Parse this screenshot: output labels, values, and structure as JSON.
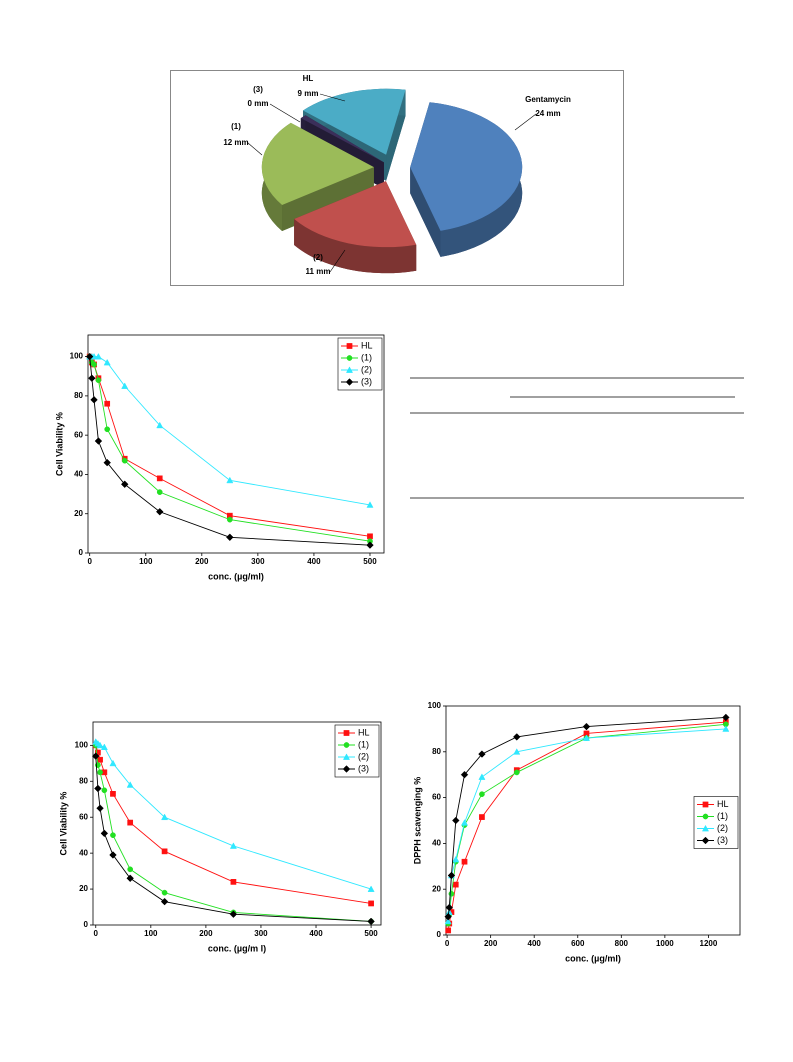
{
  "chart_data": [
    {
      "type": "pie",
      "labels": [
        "Gentamycin",
        "(2)",
        "(1)",
        "(3)",
        "HL"
      ],
      "values": [
        24,
        11,
        12,
        0,
        9
      ],
      "value_labels": [
        "24 mm",
        "11 mm",
        "12 mm",
        "0 mm",
        "9 mm"
      ],
      "colors": [
        "#4f81bd",
        "#c0504d",
        "#9bbb59",
        "#3b2f5a",
        "#4bacc6"
      ]
    },
    {
      "type": "line",
      "x": [
        0,
        3.9,
        7.8,
        15.6,
        31.25,
        62.5,
        125,
        250,
        500
      ],
      "series": [
        {
          "name": "HL",
          "color": "#ff1010",
          "marker": "square",
          "values": [
            100,
            97,
            96,
            89,
            76,
            48,
            38,
            19,
            8.5
          ]
        },
        {
          "name": "(1)",
          "color": "#22e022",
          "marker": "circle",
          "values": [
            100,
            97,
            96,
            88,
            63,
            47,
            31,
            17,
            6
          ]
        },
        {
          "name": "(2)",
          "color": "#30e8ff",
          "marker": "triangle",
          "values": [
            100,
            100,
            100,
            100,
            97,
            85,
            65,
            37,
            24.5
          ]
        },
        {
          "name": "(3)",
          "color": "#000000",
          "marker": "diamond",
          "values": [
            100,
            89,
            78,
            57,
            46,
            35,
            21,
            8,
            4
          ]
        }
      ],
      "xlabel": "conc. (µg/ml)",
      "ylabel": "Cell Viability %",
      "xlim": [
        -3,
        525
      ],
      "ylim": [
        0,
        111
      ],
      "xticks": [
        0,
        100,
        200,
        300,
        400,
        500
      ],
      "yticks": [
        0,
        20,
        40,
        60,
        80,
        100
      ],
      "legend": "upper right"
    },
    {
      "type": "line",
      "x": [
        0,
        3.9,
        7.8,
        15.6,
        31.25,
        62.5,
        125,
        250,
        500
      ],
      "series": [
        {
          "name": "HL",
          "color": "#ff1010",
          "marker": "square",
          "values": [
            100,
            96,
            92,
            85,
            73,
            57,
            41,
            24,
            12
          ]
        },
        {
          "name": "(1)",
          "color": "#22e022",
          "marker": "circle",
          "values": [
            100,
            89,
            85,
            75,
            50,
            31,
            18,
            7,
            2
          ]
        },
        {
          "name": "(2)",
          "color": "#30e8ff",
          "marker": "triangle",
          "values": [
            102,
            101,
            100,
            99,
            90,
            78,
            60,
            44,
            20
          ]
        },
        {
          "name": "(3)",
          "color": "#000000",
          "marker": "diamond",
          "values": [
            94,
            76,
            65,
            51,
            39,
            26,
            13,
            6,
            2
          ]
        }
      ],
      "xlabel": "conc. (µg/m l)",
      "ylabel": "Cell Viability %",
      "xlim": [
        -5,
        518
      ],
      "ylim": [
        0,
        113
      ],
      "xticks": [
        0,
        100,
        200,
        300,
        400,
        500
      ],
      "yticks": [
        0,
        20,
        40,
        60,
        80,
        100
      ],
      "legend": "upper right"
    },
    {
      "type": "line",
      "x": [
        5,
        10,
        20,
        40,
        80,
        160,
        320,
        640,
        1280
      ],
      "series": [
        {
          "name": "HL",
          "color": "#ff1010",
          "marker": "square",
          "values": [
            2,
            5,
            10,
            22,
            32,
            51.5,
            72,
            88,
            93
          ]
        },
        {
          "name": "(1)",
          "color": "#22e022",
          "marker": "circle",
          "values": [
            5,
            9,
            18,
            32,
            48,
            61.5,
            71,
            86,
            92
          ]
        },
        {
          "name": "(2)",
          "color": "#30e8ff",
          "marker": "triangle",
          "values": [
            6,
            10,
            26,
            33,
            49,
            69,
            80,
            86,
            90
          ]
        },
        {
          "name": "(3)",
          "color": "#000000",
          "marker": "diamond",
          "values": [
            8,
            12,
            26,
            50,
            70,
            79,
            86.5,
            91,
            95
          ]
        }
      ],
      "xlabel": "conc. (µg/ml)",
      "ylabel": "DPPH scavenging %",
      "xlim": [
        -5,
        1345
      ],
      "ylim": [
        0,
        100
      ],
      "xticks": [
        0,
        200,
        400,
        600,
        800,
        1000,
        1200
      ],
      "yticks": [
        0,
        20,
        40,
        60,
        80,
        100
      ],
      "legend": "center right"
    }
  ]
}
